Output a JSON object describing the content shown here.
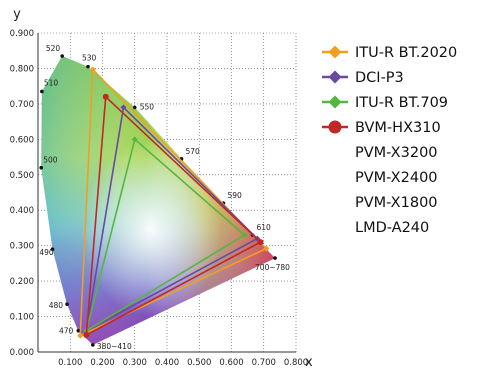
{
  "chart_data": {
    "type": "scatter",
    "title": "",
    "xlabel": "x",
    "ylabel": "y",
    "xlim": [
      0,
      0.8
    ],
    "ylim": [
      0,
      0.9
    ],
    "grid": true,
    "legend_position": "right",
    "x_ticks": [
      "0.100",
      "0.200",
      "0.300",
      "0.400",
      "0.500",
      "0.600",
      "0.700",
      "0.800"
    ],
    "y_ticks": [
      "0.000",
      "0.100",
      "0.200",
      "0.300",
      "0.400",
      "0.500",
      "0.600",
      "0.700",
      "0.800",
      "0.900"
    ],
    "spectral_locus": [
      {
        "label": "380~410",
        "x": 0.17,
        "y": 0.02
      },
      {
        "label": "470",
        "x": 0.125,
        "y": 0.06
      },
      {
        "label": "480",
        "x": 0.09,
        "y": 0.135
      },
      {
        "label": "490",
        "x": 0.045,
        "y": 0.29
      },
      {
        "label": "500",
        "x": 0.01,
        "y": 0.52
      },
      {
        "label": "510",
        "x": 0.012,
        "y": 0.735
      },
      {
        "label": "520",
        "x": 0.075,
        "y": 0.835
      },
      {
        "label": "530",
        "x": 0.155,
        "y": 0.805
      },
      {
        "label": "550",
        "x": 0.3,
        "y": 0.69
      },
      {
        "label": "570",
        "x": 0.445,
        "y": 0.545
      },
      {
        "label": "590",
        "x": 0.575,
        "y": 0.42
      },
      {
        "label": "610",
        "x": 0.665,
        "y": 0.33
      },
      {
        "label": "700~780",
        "x": 0.735,
        "y": 0.265
      }
    ],
    "series": [
      {
        "name": "ITU-R BT.2020",
        "color": "#f0a020",
        "marker": "diamond",
        "points": [
          [
            0.708,
            0.292
          ],
          [
            0.17,
            0.797
          ],
          [
            0.131,
            0.046
          ]
        ]
      },
      {
        "name": "DCI-P3",
        "color": "#6a4aa0",
        "marker": "diamond",
        "points": [
          [
            0.68,
            0.32
          ],
          [
            0.265,
            0.69
          ],
          [
            0.15,
            0.06
          ]
        ]
      },
      {
        "name": "ITU-R BT.709",
        "color": "#55b640",
        "marker": "diamond",
        "points": [
          [
            0.64,
            0.33
          ],
          [
            0.3,
            0.6
          ],
          [
            0.15,
            0.06
          ]
        ]
      },
      {
        "name": "BVM-HX310",
        "color": "#c02828",
        "marker": "circle",
        "points": [
          [
            0.69,
            0.31
          ],
          [
            0.21,
            0.72
          ],
          [
            0.15,
            0.048
          ]
        ]
      }
    ],
    "legend_extra": [
      "PVM-X3200",
      "PVM-X2400",
      "PVM-X1800",
      "LMD-A240"
    ]
  }
}
